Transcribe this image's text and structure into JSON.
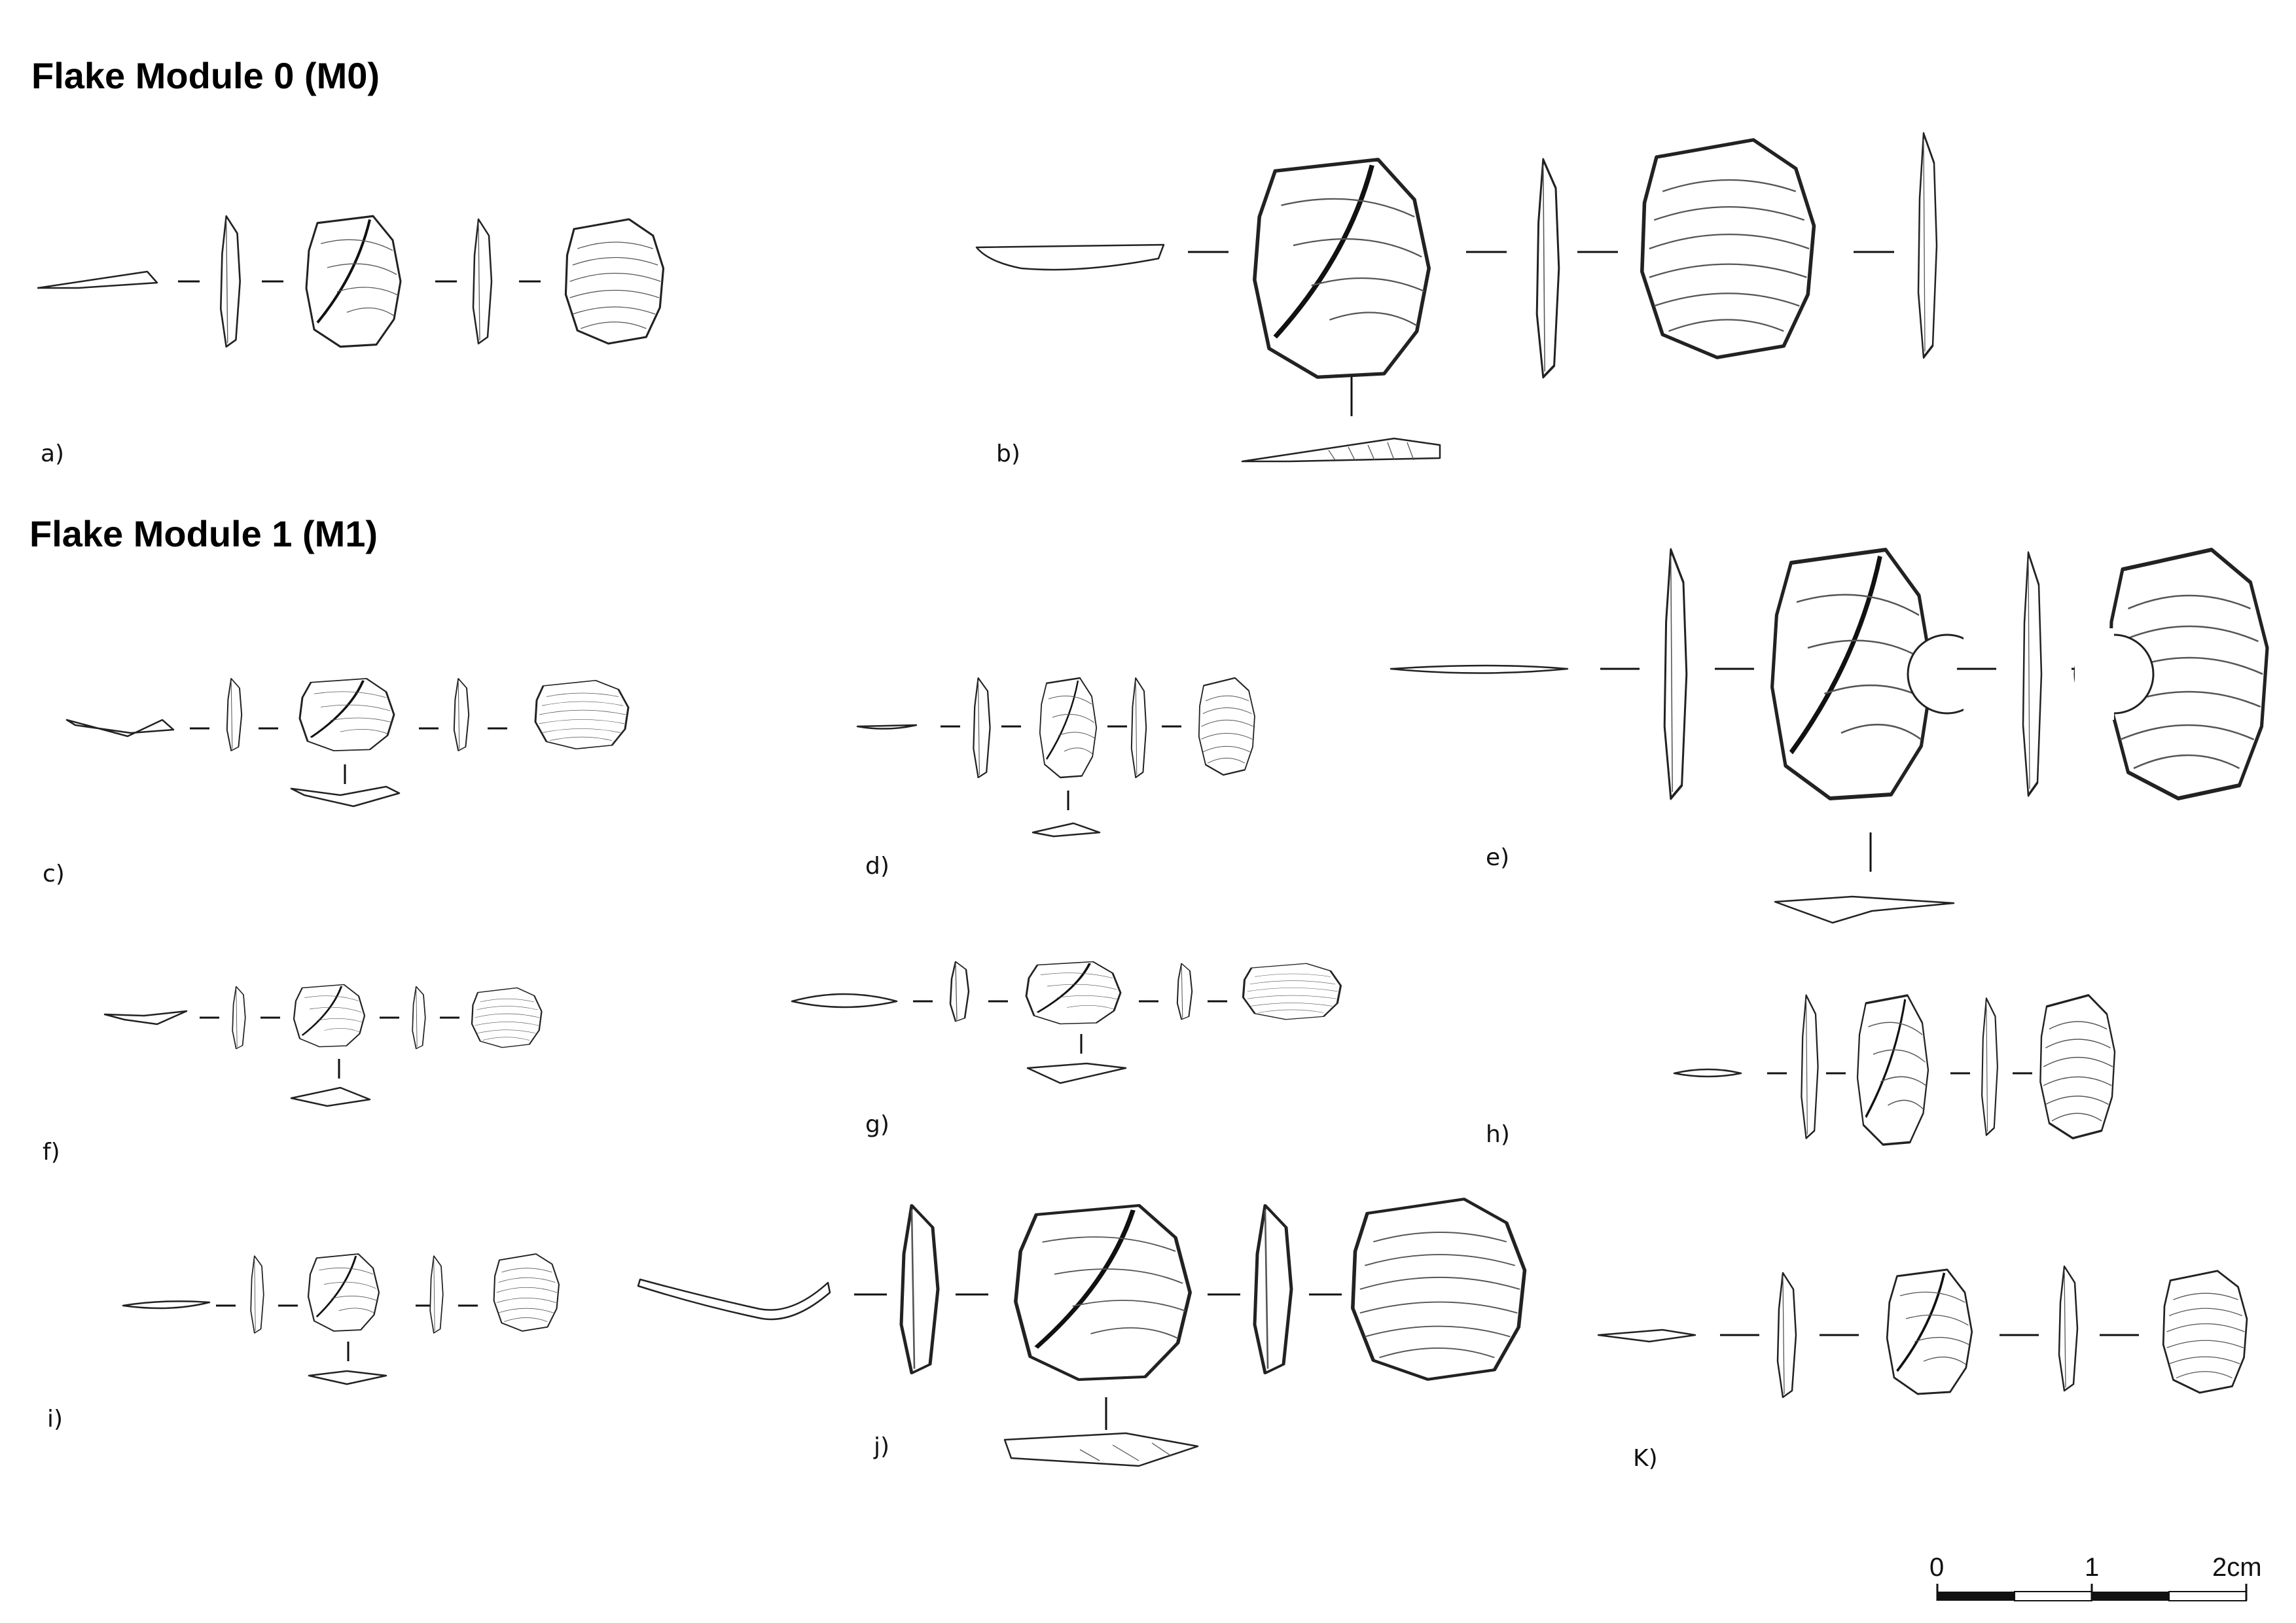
{
  "headings": {
    "m0": "Flake Module 0 (M0)",
    "m1": "Flake Module 1 (M1)"
  },
  "figure_labels": {
    "a": "a)",
    "b": "b)",
    "c": "c)",
    "d": "d)",
    "e": "e)",
    "f": "f)",
    "g": "g)",
    "h": "h)",
    "i": "i)",
    "j": "j)",
    "k": "K)"
  },
  "scale_bar": {
    "tick_0": "0",
    "tick_1": "1",
    "tick_2": "2cm"
  }
}
